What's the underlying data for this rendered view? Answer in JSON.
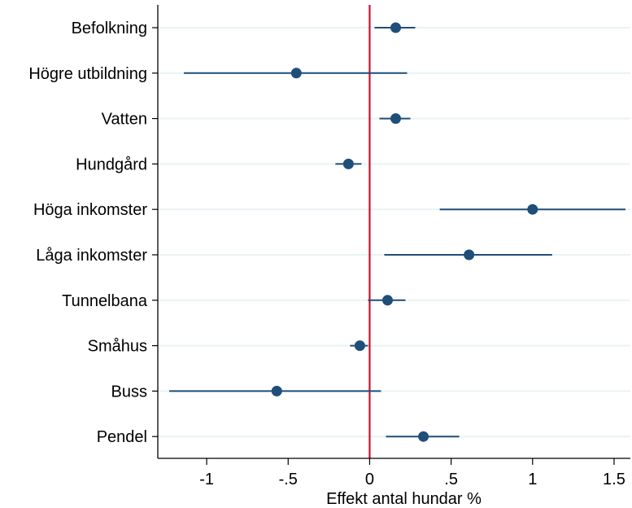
{
  "chart_data": {
    "type": "coefficient-plot",
    "xlabel": "Effekt antal hundar %",
    "xlim": [
      -1.3,
      1.6
    ],
    "xticks": [
      {
        "value": -1,
        "label": "-1"
      },
      {
        "value": -0.5,
        "label": "-.5"
      },
      {
        "value": 0,
        "label": "0"
      },
      {
        "value": 0.5,
        "label": ".5"
      },
      {
        "value": 1,
        "label": "1"
      },
      {
        "value": 1.5,
        "label": "1.5"
      }
    ],
    "reference_line": 0,
    "grid": true,
    "colors": {
      "marker": "#1f4e79",
      "ci": "#1f4e79",
      "reference": "#c8102e",
      "grid": "#eaf2f3",
      "axis": "#000000"
    },
    "points": [
      {
        "label": "Befolkning",
        "estimate": 0.16,
        "ci": [
          0.03,
          0.28
        ]
      },
      {
        "label": "Högre utbildning",
        "estimate": -0.45,
        "ci": [
          -1.14,
          0.23
        ]
      },
      {
        "label": "Vatten",
        "estimate": 0.16,
        "ci": [
          0.06,
          0.25
        ]
      },
      {
        "label": "Hundgård",
        "estimate": -0.13,
        "ci": [
          -0.21,
          -0.05
        ]
      },
      {
        "label": "Höga inkomster",
        "estimate": 1.0,
        "ci": [
          0.43,
          1.57
        ]
      },
      {
        "label": "Låga inkomster",
        "estimate": 0.61,
        "ci": [
          0.09,
          1.12
        ]
      },
      {
        "label": "Tunnelbana",
        "estimate": 0.11,
        "ci": [
          -0.01,
          0.22
        ]
      },
      {
        "label": "Småhus",
        "estimate": -0.06,
        "ci": [
          -0.12,
          -0.01
        ]
      },
      {
        "label": "Buss",
        "estimate": -0.57,
        "ci": [
          -1.23,
          0.07
        ]
      },
      {
        "label": "Pendel",
        "estimate": 0.33,
        "ci": [
          0.1,
          0.55
        ]
      }
    ]
  }
}
